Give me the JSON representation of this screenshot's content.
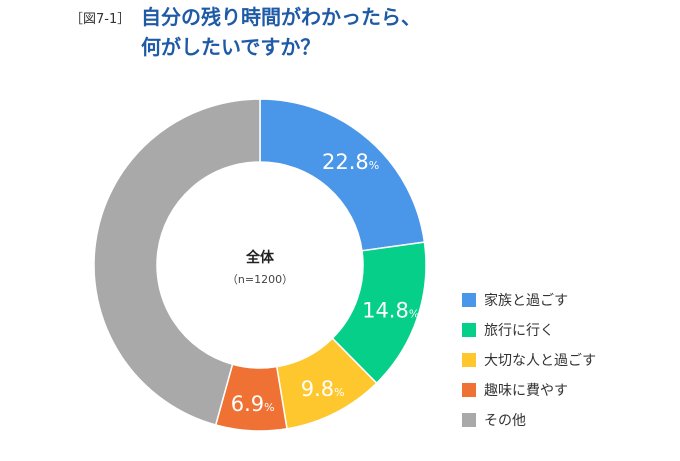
{
  "figure_label": "［図7-1］",
  "title_lines": [
    "自分の残り時間がわかったら、",
    "何がしたいですか？"
  ],
  "chart_data": {
    "type": "pie",
    "center_label": "全体",
    "center_sublabel": "（n=1200）",
    "unit": "%",
    "slices": [
      {
        "label": "家族と過ごす",
        "value": 22.8,
        "color": "#4a96e8"
      },
      {
        "label": "旅行に行く",
        "value": 14.8,
        "color": "#05cf88"
      },
      {
        "label": "大切な人と過ごす",
        "value": 9.8,
        "color": "#fec72e"
      },
      {
        "label": "趣味に費やす",
        "value": 6.9,
        "color": "#f07134"
      },
      {
        "label": "その他",
        "value": 45.7,
        "color": "#a9a9a9"
      }
    ],
    "data_labels_shown": [
      true,
      true,
      true,
      true,
      false
    ],
    "legend_position": "right"
  }
}
